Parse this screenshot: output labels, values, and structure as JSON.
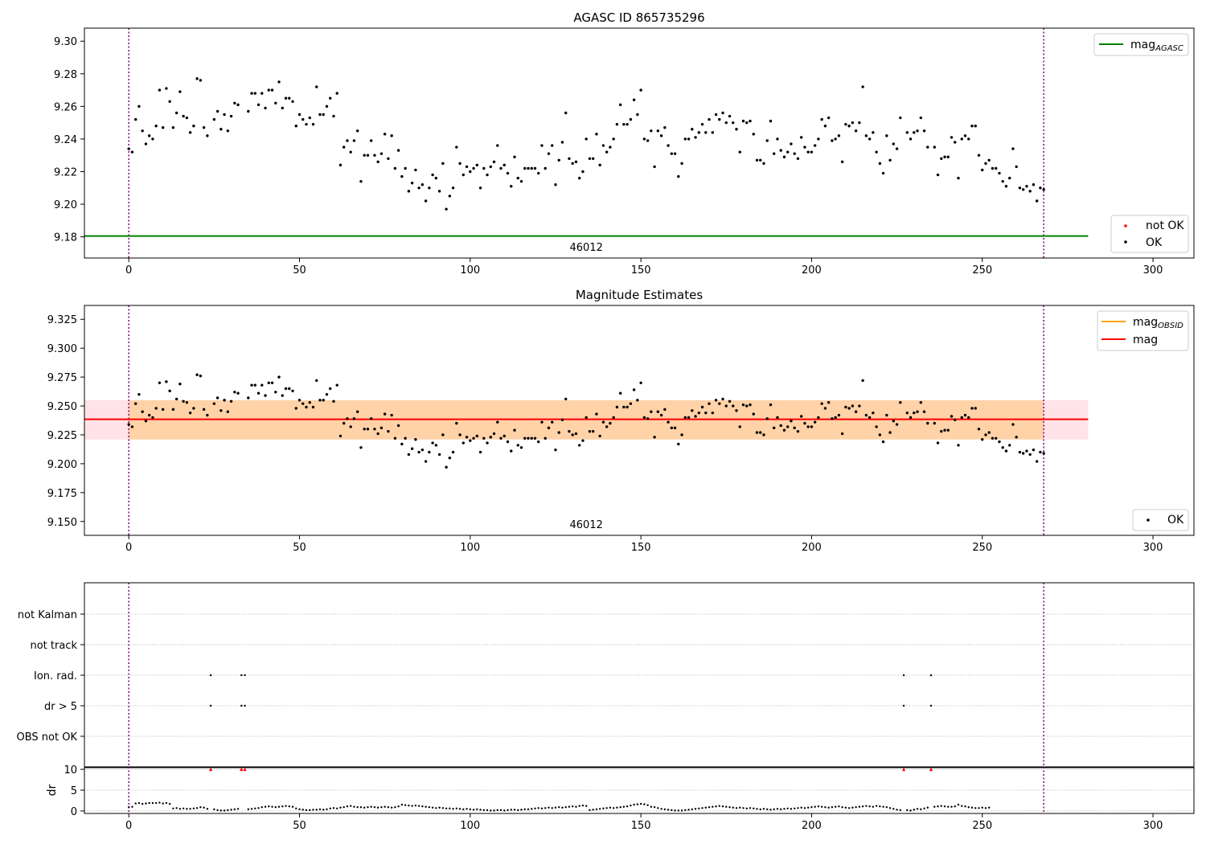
{
  "chart_data": [
    {
      "type": "scatter",
      "title": "AGASC ID 865735296",
      "xlim": [
        -13,
        312
      ],
      "ylim": [
        9.167,
        9.308
      ],
      "xticks": [
        0,
        50,
        100,
        150,
        200,
        250,
        300
      ],
      "yticks": [
        9.18,
        9.2,
        9.22,
        9.24,
        9.26,
        9.28,
        9.3
      ],
      "ytick_decimals": 2,
      "vlines": [
        0,
        268
      ],
      "obsid_label": {
        "text": "46012",
        "x": 134
      },
      "hline": {
        "name": "mag_AGASC",
        "y": 9.1805,
        "x_range": [
          -13,
          281
        ],
        "color": "#008000"
      },
      "legend_top": [
        {
          "label": "mag",
          "sub": "AGASC",
          "color": "#008000",
          "kind": "line"
        }
      ],
      "legend_bottom": [
        {
          "label": "not OK",
          "color": "#ff0000",
          "kind": "dot"
        },
        {
          "label": "OK",
          "color": "#000000",
          "kind": "dot"
        }
      ],
      "series": [
        {
          "name": "OK",
          "color": "#000000",
          "values": "mag_points"
        }
      ]
    },
    {
      "type": "scatter",
      "title": "Magnitude Estimates",
      "xlim": [
        -13,
        312
      ],
      "ylim": [
        9.138,
        9.337
      ],
      "xticks": [
        0,
        50,
        100,
        150,
        200,
        250,
        300
      ],
      "yticks": [
        9.15,
        9.175,
        9.2,
        9.225,
        9.25,
        9.275,
        9.3,
        9.325
      ],
      "ytick_decimals": 3,
      "vlines": [
        0,
        268
      ],
      "obsid_label": {
        "text": "46012",
        "x": 134
      },
      "band_outer": {
        "y": [
          9.221,
          9.255
        ],
        "x_range": [
          -13,
          281
        ],
        "color": "#ffc0cb"
      },
      "band_inner": {
        "y": [
          9.221,
          9.255
        ],
        "x_range": [
          0,
          268
        ],
        "color": "#ffa500"
      },
      "hline": {
        "name": "mag",
        "y": 9.2385,
        "x_range": [
          -13,
          281
        ],
        "color": "#ff0000"
      },
      "legend_top": [
        {
          "label": "mag",
          "sub": "OBSID",
          "color": "#ffa500",
          "kind": "line"
        },
        {
          "label": "mag",
          "sub": "",
          "color": "#ff0000",
          "kind": "line"
        }
      ],
      "legend_bottom": [
        {
          "label": "OK",
          "color": "#000000",
          "kind": "dot"
        }
      ],
      "series": [
        {
          "name": "OK",
          "color": "#000000",
          "values": "mag_points"
        }
      ]
    },
    {
      "type": "scatter",
      "xlim": [
        -13,
        312
      ],
      "categories": [
        "not Kalman",
        "not track",
        "Ion. rad.",
        "dr > 5",
        "OBS not OK"
      ],
      "flags": {
        "Ion. rad.": [
          24,
          33,
          34,
          227,
          235
        ],
        "dr > 5": [
          24,
          33,
          34,
          227,
          235
        ]
      },
      "vlines": [
        0,
        268
      ]
    },
    {
      "type": "scatter",
      "xlim": [
        -13,
        312
      ],
      "ylim": [
        -0.6,
        10.6
      ],
      "ylabel": "dr",
      "xticks": [
        0,
        50,
        100,
        150,
        200,
        250,
        300
      ],
      "yticks": [
        0,
        5,
        10
      ],
      "vlines": [
        0,
        268
      ],
      "clipped_markers": {
        "x": [
          24,
          33,
          34,
          227,
          235
        ],
        "y": 10,
        "color": "#ff0000"
      },
      "dr_values": [
        0.9,
        1.0,
        1.8,
        1.9,
        1.7,
        1.8,
        1.9,
        1.9,
        1.9,
        2.0,
        1.8,
        1.9,
        1.7,
        0.6,
        0.7,
        0.5,
        0.6,
        0.5,
        0.5,
        0.6,
        0.7,
        0.9,
        0.8,
        0.5,
        0.4,
        0.2,
        0.1,
        0.1,
        0.2,
        0.3,
        0.4,
        0.5,
        0.4,
        0.5,
        0.6,
        0.7,
        0.9,
        1.0,
        1.1,
        1.0,
        0.9,
        1.0,
        1.1,
        1.2,
        1.1,
        1.0,
        0.6,
        0.4,
        0.3,
        0.2,
        0.2,
        0.3,
        0.3,
        0.4,
        0.3,
        0.4,
        0.6,
        0.7,
        0.6,
        0.8,
        0.9,
        1.1,
        1.2,
        1.0,
        0.9,
        0.9,
        0.8,
        0.9,
        1.0,
        0.9,
        0.8,
        0.9,
        1.0,
        0.9,
        0.8,
        0.9,
        1.1,
        1.5,
        1.4,
        1.3,
        1.2,
        1.3,
        1.2,
        1.1,
        1.0,
        0.9,
        0.8,
        0.7,
        0.8,
        0.7,
        0.6,
        0.6,
        0.5,
        0.6,
        0.5,
        0.4,
        0.5,
        0.4,
        0.3,
        0.4,
        0.3,
        0.2,
        0.2,
        0.1,
        0.1,
        0.2,
        0.2,
        0.1,
        0.2,
        0.3,
        0.3,
        0.2,
        0.3,
        0.4,
        0.4,
        0.5,
        0.6,
        0.7,
        0.6,
        0.7,
        0.8,
        0.7,
        0.8,
        0.9,
        0.8,
        0.9,
        1.0,
        1.1,
        1.0,
        1.2,
        1.3,
        1.2,
        0.2,
        0.3,
        0.4,
        0.5,
        0.6,
        0.7,
        0.8,
        0.7,
        0.8,
        0.9,
        1.0,
        1.1,
        1.3,
        1.5,
        1.6,
        1.7,
        1.6,
        1.4,
        1.0,
        0.9,
        0.7,
        0.5,
        0.4,
        0.3,
        0.2,
        0.1,
        0.1,
        0.1,
        0.2,
        0.3,
        0.4,
        0.5,
        0.6,
        0.7,
        0.8,
        0.9,
        1.0,
        1.1,
        1.2,
        1.1,
        1.0,
        0.9,
        0.8,
        0.7,
        0.8,
        0.7,
        0.6,
        0.7,
        0.6,
        0.5,
        0.4,
        0.5,
        0.4,
        0.3,
        0.4,
        0.5,
        0.4,
        0.5,
        0.6,
        0.5,
        0.6,
        0.7,
        0.8,
        0.7,
        0.8,
        0.9,
        1.0,
        1.1,
        1.0,
        0.9,
        0.8,
        0.9,
        1.0,
        1.1,
        0.9,
        0.8,
        0.7,
        0.8,
        0.9,
        1.0,
        1.1,
        1.2,
        1.1,
        1.0,
        1.2,
        1.1,
        1.0,
        0.9,
        0.7,
        0.5,
        0.3,
        0.2,
        0.2,
        0.1,
        0.3,
        0.5,
        0.4,
        0.6,
        0.8,
        1.0,
        1.1,
        1.2,
        1.1,
        1.0,
        1.0,
        1.1,
        1.5,
        1.2,
        1.1,
        0.9,
        0.8,
        0.7,
        0.7,
        0.8,
        0.7,
        0.8
      ]
    }
  ],
  "mag_points": [
    [
      0,
      9.234
    ],
    [
      1,
      9.232
    ],
    [
      2,
      9.252
    ],
    [
      3,
      9.26
    ],
    [
      4,
      9.245
    ],
    [
      5,
      9.237
    ],
    [
      6,
      9.242
    ],
    [
      7,
      9.24
    ],
    [
      8,
      9.248
    ],
    [
      9,
      9.27
    ],
    [
      10,
      9.247
    ],
    [
      11,
      9.271
    ],
    [
      12,
      9.263
    ],
    [
      13,
      9.247
    ],
    [
      14,
      9.256
    ],
    [
      15,
      9.269
    ],
    [
      16,
      9.254
    ],
    [
      17,
      9.253
    ],
    [
      18,
      9.244
    ],
    [
      19,
      9.248
    ],
    [
      20,
      9.277
    ],
    [
      21,
      9.276
    ],
    [
      22,
      9.247
    ],
    [
      23,
      9.242
    ],
    [
      25,
      9.252
    ],
    [
      26,
      9.257
    ],
    [
      27,
      9.246
    ],
    [
      28,
      9.255
    ],
    [
      29,
      9.245
    ],
    [
      30,
      9.254
    ],
    [
      31,
      9.262
    ],
    [
      32,
      9.261
    ],
    [
      35,
      9.257
    ],
    [
      36,
      9.268
    ],
    [
      37,
      9.268
    ],
    [
      38,
      9.261
    ],
    [
      39,
      9.268
    ],
    [
      40,
      9.259
    ],
    [
      41,
      9.27
    ],
    [
      42,
      9.27
    ],
    [
      43,
      9.262
    ],
    [
      44,
      9.275
    ],
    [
      45,
      9.259
    ],
    [
      46,
      9.265
    ],
    [
      47,
      9.265
    ],
    [
      48,
      9.263
    ],
    [
      49,
      9.248
    ],
    [
      50,
      9.255
    ],
    [
      51,
      9.252
    ],
    [
      52,
      9.249
    ],
    [
      53,
      9.253
    ],
    [
      54,
      9.249
    ],
    [
      55,
      9.272
    ],
    [
      56,
      9.255
    ],
    [
      57,
      9.255
    ],
    [
      58,
      9.26
    ],
    [
      59,
      9.265
    ],
    [
      60,
      9.254
    ],
    [
      61,
      9.268
    ],
    [
      62,
      9.224
    ],
    [
      63,
      9.235
    ],
    [
      64,
      9.239
    ],
    [
      65,
      9.232
    ],
    [
      66,
      9.239
    ],
    [
      67,
      9.245
    ],
    [
      68,
      9.214
    ],
    [
      69,
      9.23
    ],
    [
      70,
      9.23
    ],
    [
      71,
      9.239
    ],
    [
      72,
      9.23
    ],
    [
      73,
      9.226
    ],
    [
      74,
      9.231
    ],
    [
      75,
      9.243
    ],
    [
      76,
      9.228
    ],
    [
      77,
      9.242
    ],
    [
      78,
      9.222
    ],
    [
      79,
      9.233
    ],
    [
      80,
      9.217
    ],
    [
      81,
      9.222
    ],
    [
      82,
      9.208
    ],
    [
      83,
      9.213
    ],
    [
      84,
      9.221
    ],
    [
      85,
      9.21
    ],
    [
      86,
      9.212
    ],
    [
      87,
      9.202
    ],
    [
      88,
      9.21
    ],
    [
      89,
      9.218
    ],
    [
      90,
      9.216
    ],
    [
      91,
      9.208
    ],
    [
      92,
      9.225
    ],
    [
      93,
      9.197
    ],
    [
      94,
      9.205
    ],
    [
      95,
      9.21
    ],
    [
      96,
      9.235
    ],
    [
      97,
      9.225
    ],
    [
      98,
      9.218
    ],
    [
      99,
      9.223
    ],
    [
      100,
      9.22
    ],
    [
      101,
      9.222
    ],
    [
      102,
      9.224
    ],
    [
      103,
      9.21
    ],
    [
      104,
      9.222
    ],
    [
      105,
      9.218
    ],
    [
      106,
      9.223
    ],
    [
      107,
      9.226
    ],
    [
      108,
      9.236
    ],
    [
      109,
      9.222
    ],
    [
      110,
      9.224
    ],
    [
      111,
      9.219
    ],
    [
      112,
      9.211
    ],
    [
      113,
      9.229
    ],
    [
      114,
      9.216
    ],
    [
      115,
      9.214
    ],
    [
      116,
      9.222
    ],
    [
      117,
      9.222
    ],
    [
      118,
      9.222
    ],
    [
      119,
      9.222
    ],
    [
      120,
      9.219
    ],
    [
      121,
      9.236
    ],
    [
      122,
      9.222
    ],
    [
      123,
      9.231
    ],
    [
      124,
      9.236
    ],
    [
      125,
      9.212
    ],
    [
      126,
      9.227
    ],
    [
      127,
      9.238
    ],
    [
      128,
      9.256
    ],
    [
      129,
      9.228
    ],
    [
      130,
      9.225
    ],
    [
      131,
      9.226
    ],
    [
      132,
      9.216
    ],
    [
      133,
      9.22
    ],
    [
      134,
      9.24
    ],
    [
      135,
      9.228
    ],
    [
      136,
      9.228
    ],
    [
      137,
      9.243
    ],
    [
      138,
      9.224
    ],
    [
      139,
      9.236
    ],
    [
      140,
      9.232
    ],
    [
      141,
      9.235
    ],
    [
      142,
      9.24
    ],
    [
      143,
      9.249
    ],
    [
      144,
      9.261
    ],
    [
      145,
      9.249
    ],
    [
      146,
      9.249
    ],
    [
      147,
      9.252
    ],
    [
      148,
      9.264
    ],
    [
      149,
      9.255
    ],
    [
      150,
      9.27
    ],
    [
      151,
      9.24
    ],
    [
      152,
      9.239
    ],
    [
      153,
      9.245
    ],
    [
      154,
      9.223
    ],
    [
      155,
      9.245
    ],
    [
      156,
      9.242
    ],
    [
      157,
      9.247
    ],
    [
      158,
      9.236
    ],
    [
      159,
      9.231
    ],
    [
      160,
      9.231
    ],
    [
      161,
      9.217
    ],
    [
      162,
      9.225
    ],
    [
      163,
      9.24
    ],
    [
      164,
      9.24
    ],
    [
      165,
      9.246
    ],
    [
      166,
      9.241
    ],
    [
      167,
      9.244
    ],
    [
      168,
      9.249
    ],
    [
      169,
      9.244
    ],
    [
      170,
      9.252
    ],
    [
      171,
      9.244
    ],
    [
      172,
      9.255
    ],
    [
      173,
      9.252
    ],
    [
      174,
      9.256
    ],
    [
      175,
      9.25
    ],
    [
      176,
      9.254
    ],
    [
      177,
      9.25
    ],
    [
      178,
      9.246
    ],
    [
      179,
      9.232
    ],
    [
      180,
      9.251
    ],
    [
      181,
      9.25
    ],
    [
      182,
      9.251
    ],
    [
      183,
      9.243
    ],
    [
      184,
      9.227
    ],
    [
      185,
      9.227
    ],
    [
      186,
      9.225
    ],
    [
      187,
      9.239
    ],
    [
      188,
      9.251
    ],
    [
      189,
      9.231
    ],
    [
      190,
      9.24
    ],
    [
      191,
      9.233
    ],
    [
      192,
      9.229
    ],
    [
      193,
      9.232
    ],
    [
      194,
      9.237
    ],
    [
      195,
      9.231
    ],
    [
      196,
      9.228
    ],
    [
      197,
      9.241
    ],
    [
      198,
      9.235
    ],
    [
      199,
      9.232
    ],
    [
      200,
      9.232
    ],
    [
      201,
      9.236
    ],
    [
      202,
      9.24
    ],
    [
      203,
      9.252
    ],
    [
      204,
      9.248
    ],
    [
      205,
      9.253
    ],
    [
      206,
      9.239
    ],
    [
      207,
      9.24
    ],
    [
      208,
      9.242
    ],
    [
      209,
      9.226
    ],
    [
      210,
      9.249
    ],
    [
      211,
      9.248
    ],
    [
      212,
      9.25
    ],
    [
      213,
      9.245
    ],
    [
      214,
      9.25
    ],
    [
      215,
      9.272
    ],
    [
      216,
      9.242
    ],
    [
      217,
      9.24
    ],
    [
      218,
      9.244
    ],
    [
      219,
      9.232
    ],
    [
      220,
      9.225
    ],
    [
      221,
      9.219
    ],
    [
      222,
      9.242
    ],
    [
      223,
      9.227
    ],
    [
      224,
      9.237
    ],
    [
      225,
      9.234
    ],
    [
      226,
      9.253
    ],
    [
      228,
      9.244
    ],
    [
      229,
      9.24
    ],
    [
      230,
      9.244
    ],
    [
      231,
      9.245
    ],
    [
      232,
      9.253
    ],
    [
      233,
      9.245
    ],
    [
      234,
      9.235
    ],
    [
      236,
      9.235
    ],
    [
      237,
      9.218
    ],
    [
      238,
      9.228
    ],
    [
      239,
      9.229
    ],
    [
      240,
      9.229
    ],
    [
      241,
      9.241
    ],
    [
      242,
      9.238
    ],
    [
      243,
      9.216
    ],
    [
      244,
      9.24
    ],
    [
      245,
      9.242
    ],
    [
      246,
      9.24
    ],
    [
      247,
      9.248
    ],
    [
      248,
      9.248
    ],
    [
      249,
      9.23
    ],
    [
      250,
      9.221
    ],
    [
      251,
      9.225
    ],
    [
      252,
      9.227
    ],
    [
      253,
      9.222
    ],
    [
      254,
      9.222
    ],
    [
      255,
      9.219
    ],
    [
      256,
      9.214
    ],
    [
      257,
      9.211
    ],
    [
      258,
      9.216
    ],
    [
      259,
      9.234
    ],
    [
      260,
      9.223
    ],
    [
      261,
      9.21
    ],
    [
      262,
      9.209
    ],
    [
      263,
      9.211
    ],
    [
      264,
      9.208
    ],
    [
      265,
      9.212
    ],
    [
      266,
      9.202
    ],
    [
      267,
      9.21
    ],
    [
      268,
      9.209
    ]
  ]
}
